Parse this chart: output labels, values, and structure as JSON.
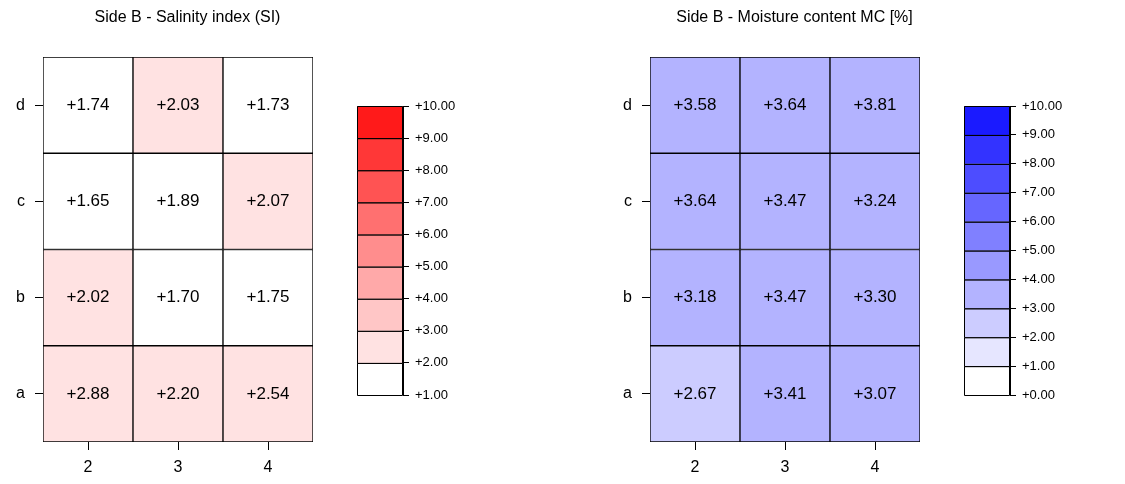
{
  "chart_data": [
    {
      "type": "heatmap",
      "title": "Side B - Salinity index (SI)",
      "categories": [
        "2",
        "3",
        "4"
      ],
      "y_categories": [
        "d",
        "c",
        "b",
        "a"
      ],
      "cells": [
        [
          1.74,
          2.03,
          1.73
        ],
        [
          1.65,
          1.89,
          2.07
        ],
        [
          2.02,
          1.7,
          1.75
        ],
        [
          2.88,
          2.2,
          2.54
        ]
      ],
      "cell_labels": [
        [
          "+1.74",
          "+2.03",
          "+1.73"
        ],
        [
          "+1.65",
          "+1.89",
          "+2.07"
        ],
        [
          "+2.02",
          "+1.70",
          "+1.75"
        ],
        [
          "+2.88",
          "+2.20",
          "+2.54"
        ]
      ],
      "color": "#ff1a1a",
      "clim": [
        1,
        10
      ],
      "cticks": [
        {
          "value": 1,
          "label": "+1.00"
        },
        {
          "value": 2,
          "label": "+2.00"
        },
        {
          "value": 3,
          "label": "+3.00"
        },
        {
          "value": 4,
          "label": "+4.00"
        },
        {
          "value": 5,
          "label": "+5.00"
        },
        {
          "value": 6,
          "label": "+6.00"
        },
        {
          "value": 7,
          "label": "+7.00"
        },
        {
          "value": 8,
          "label": "+8.00"
        },
        {
          "value": 9,
          "label": "+9.00"
        },
        {
          "value": 10,
          "label": "+10.00"
        }
      ]
    },
    {
      "type": "heatmap",
      "title": "Side B - Moisture content MC [%]",
      "categories": [
        "2",
        "3",
        "4"
      ],
      "y_categories": [
        "d",
        "c",
        "b",
        "a"
      ],
      "cells": [
        [
          3.58,
          3.64,
          3.81
        ],
        [
          3.64,
          3.47,
          3.24
        ],
        [
          3.18,
          3.47,
          3.3
        ],
        [
          2.67,
          3.41,
          3.07
        ]
      ],
      "cell_labels": [
        [
          "+3.58",
          "+3.64",
          "+3.81"
        ],
        [
          "+3.64",
          "+3.47",
          "+3.24"
        ],
        [
          "+3.18",
          "+3.47",
          "+3.30"
        ],
        [
          "+2.67",
          "+3.41",
          "+3.07"
        ]
      ],
      "color": "#1a1aff",
      "clim": [
        0,
        10
      ],
      "cticks": [
        {
          "value": 0,
          "label": "+0.00"
        },
        {
          "value": 1,
          "label": "+1.00"
        },
        {
          "value": 2,
          "label": "+2.00"
        },
        {
          "value": 3,
          "label": "+3.00"
        },
        {
          "value": 4,
          "label": "+4.00"
        },
        {
          "value": 5,
          "label": "+5.00"
        },
        {
          "value": 6,
          "label": "+6.00"
        },
        {
          "value": 7,
          "label": "+7.00"
        },
        {
          "value": 8,
          "label": "+8.00"
        },
        {
          "value": 9,
          "label": "+9.00"
        },
        {
          "value": 10,
          "label": "+10.00"
        }
      ]
    }
  ]
}
